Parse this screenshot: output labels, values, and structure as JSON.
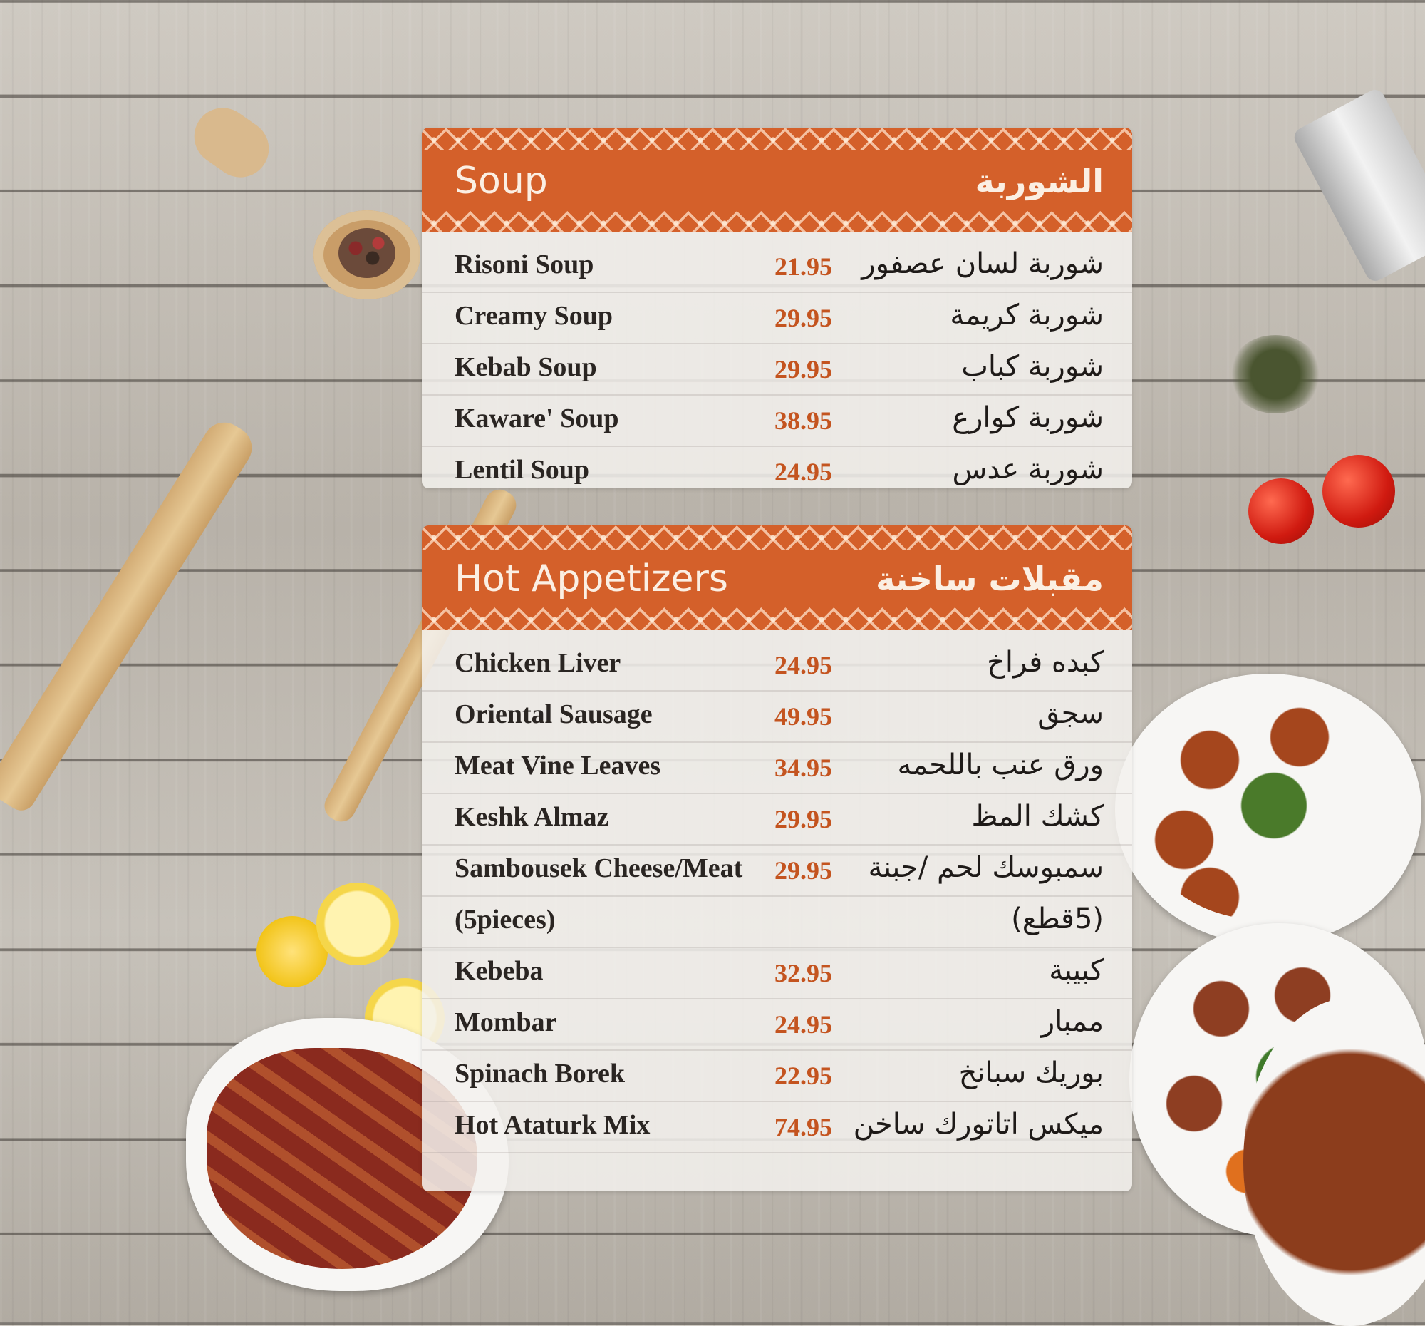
{
  "colors": {
    "accent": "#d4602a",
    "price": "#c4541f",
    "text": "#2a2522"
  },
  "sections": [
    {
      "title_en": "Soup",
      "title_ar": "الشوربة",
      "items": [
        {
          "en": "Risoni Soup",
          "price": "21.95",
          "ar": "شوربة لسان عصفور"
        },
        {
          "en": "Creamy Soup",
          "price": "29.95",
          "ar": "شوربة كريمة"
        },
        {
          "en": "Kebab Soup",
          "price": "29.95",
          "ar": "شوربة كباب"
        },
        {
          "en": "Kaware' Soup",
          "price": "38.95",
          "ar": "شوربة كوارع"
        },
        {
          "en": "Lentil Soup",
          "price": "24.95",
          "ar": "شوربة عدس"
        }
      ]
    },
    {
      "title_en": "Hot Appetizers",
      "title_ar": "مقبلات ساخنة",
      "items": [
        {
          "en": "Chicken Liver",
          "price": "24.95",
          "ar": "كبده فراخ"
        },
        {
          "en": "Oriental Sausage",
          "price": "49.95",
          "ar": "سجق"
        },
        {
          "en": "Meat Vine Leaves",
          "price": "34.95",
          "ar": "ورق عنب باللحمه"
        },
        {
          "en": "Keshk Almaz",
          "price": "29.95",
          "ar": "كشك المظ"
        },
        {
          "en": "Sambousek Cheese/Meat",
          "price": "29.95",
          "ar": "سمبوسك لحم /جبنة"
        },
        {
          "en": "(5pieces)",
          "price": "",
          "ar": "(5قطع)"
        },
        {
          "en": "Kebeba",
          "price": "32.95",
          "ar": "كبيبة"
        },
        {
          "en": "Mombar",
          "price": "24.95",
          "ar": "ممبار"
        },
        {
          "en": "Spinach Borek",
          "price": "22.95",
          "ar": "بوريك سبانخ"
        },
        {
          "en": "Hot Ataturk Mix",
          "price": "74.95",
          "ar": "ميكس اتاتورك ساخن"
        }
      ]
    }
  ]
}
